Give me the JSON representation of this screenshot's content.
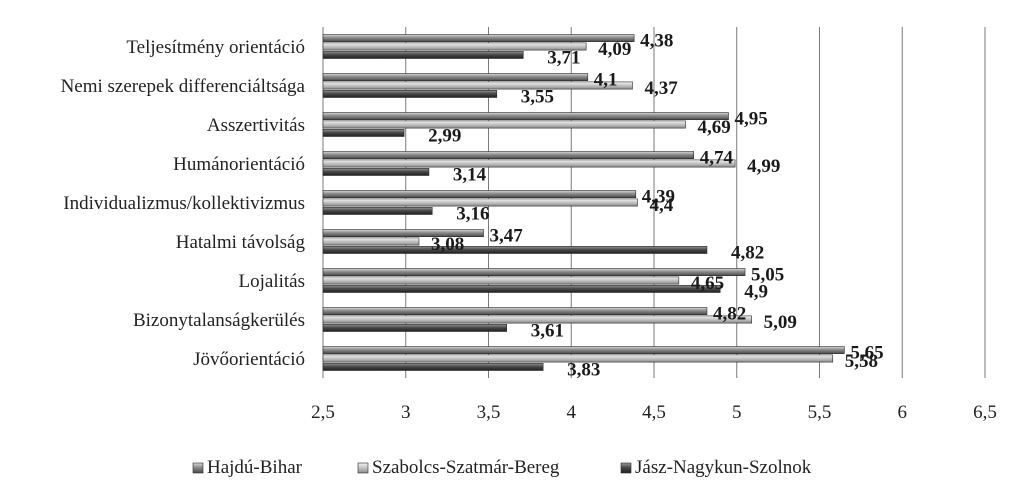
{
  "chart_data": {
    "type": "bar",
    "orientation": "horizontal",
    "categories": [
      "Teljesítmény orientáció",
      "Nemi szerepek differenciáltsága",
      "Asszertivitás",
      "Humánorientáció",
      "Individualizmus/kollektivizmus",
      "Hatalmi távolság",
      "Lojalitás",
      "Bizonytalanságkerülés",
      "Jövőorientáció"
    ],
    "series": [
      {
        "name": "Hajdú-Bihar",
        "color": "#6e6e6e",
        "values": [
          4.38,
          4.1,
          4.95,
          4.74,
          4.39,
          3.47,
          5.05,
          4.82,
          5.65
        ],
        "labels": [
          "4,38",
          "4,1",
          "4,95",
          "4,74",
          "4,39",
          "3,47",
          "5,05",
          "4,82",
          "5,65"
        ]
      },
      {
        "name": "Szabolcs-Szatmár-Bereg",
        "color": "#bdbdbd",
        "values": [
          4.09,
          4.37,
          4.69,
          4.99,
          4.4,
          3.08,
          4.65,
          5.09,
          5.58
        ],
        "labels": [
          "4,09",
          "4,37",
          "4,69",
          "4,99",
          "4,4",
          "3,08",
          "4,65",
          "5,09",
          "5,58"
        ]
      },
      {
        "name": "Jász-Nagykun-Szolnok",
        "color": "#3c3c3c",
        "values": [
          3.71,
          3.55,
          2.99,
          3.14,
          3.16,
          4.82,
          4.9,
          3.61,
          3.83
        ],
        "labels": [
          "3,71",
          "3,55",
          "2,99",
          "3,14",
          "3,16",
          "4,82",
          "4,9",
          "3,61",
          "3,83"
        ]
      }
    ],
    "xlim": [
      2.5,
      6.5
    ],
    "xticks": [
      2.5,
      3,
      3.5,
      4,
      4.5,
      5,
      5.5,
      6,
      6.5
    ],
    "xtick_labels": [
      "2,5",
      "3",
      "3,5",
      "4",
      "4,5",
      "5",
      "5,5",
      "6",
      "6,5"
    ],
    "grid": "vertical",
    "legend_position": "bottom",
    "legend": [
      "Hajdú-Bihar",
      "Szabolcs-Szatmár-Bereg",
      "Jász-Nagykun-Szolnok"
    ]
  }
}
